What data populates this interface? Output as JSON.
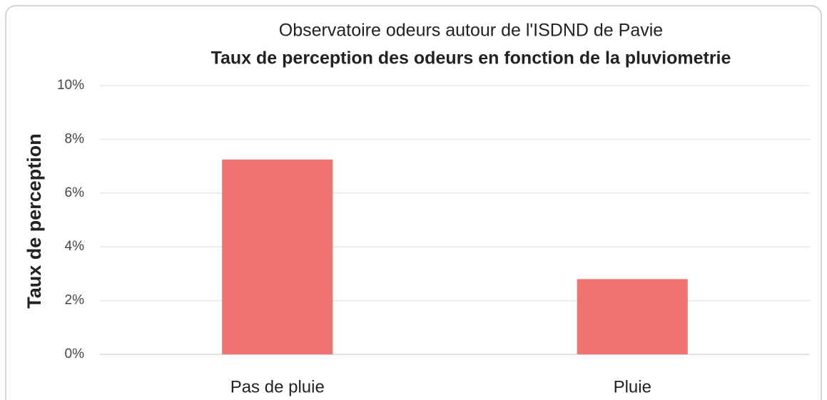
{
  "chart_data": {
    "type": "bar",
    "title": "Observatoire odeurs autour de l'ISDND de Pavie",
    "subtitle": "Taux de perception des odeurs en fonction de la pluviometrie",
    "y_label": "Taux de perception",
    "categories": [
      "Pas de pluie",
      "Pluie"
    ],
    "values": [
      7.25,
      2.8
    ],
    "color": "#ef7371",
    "ylim": [
      0,
      10
    ],
    "yticks": [
      {
        "value": 0,
        "label": "0%"
      },
      {
        "value": 2,
        "label": "2%"
      },
      {
        "value": 4,
        "label": "4%"
      },
      {
        "value": 6,
        "label": "6%"
      },
      {
        "value": 8,
        "label": "8%"
      },
      {
        "value": 10,
        "label": "10%"
      }
    ],
    "grid": true
  }
}
